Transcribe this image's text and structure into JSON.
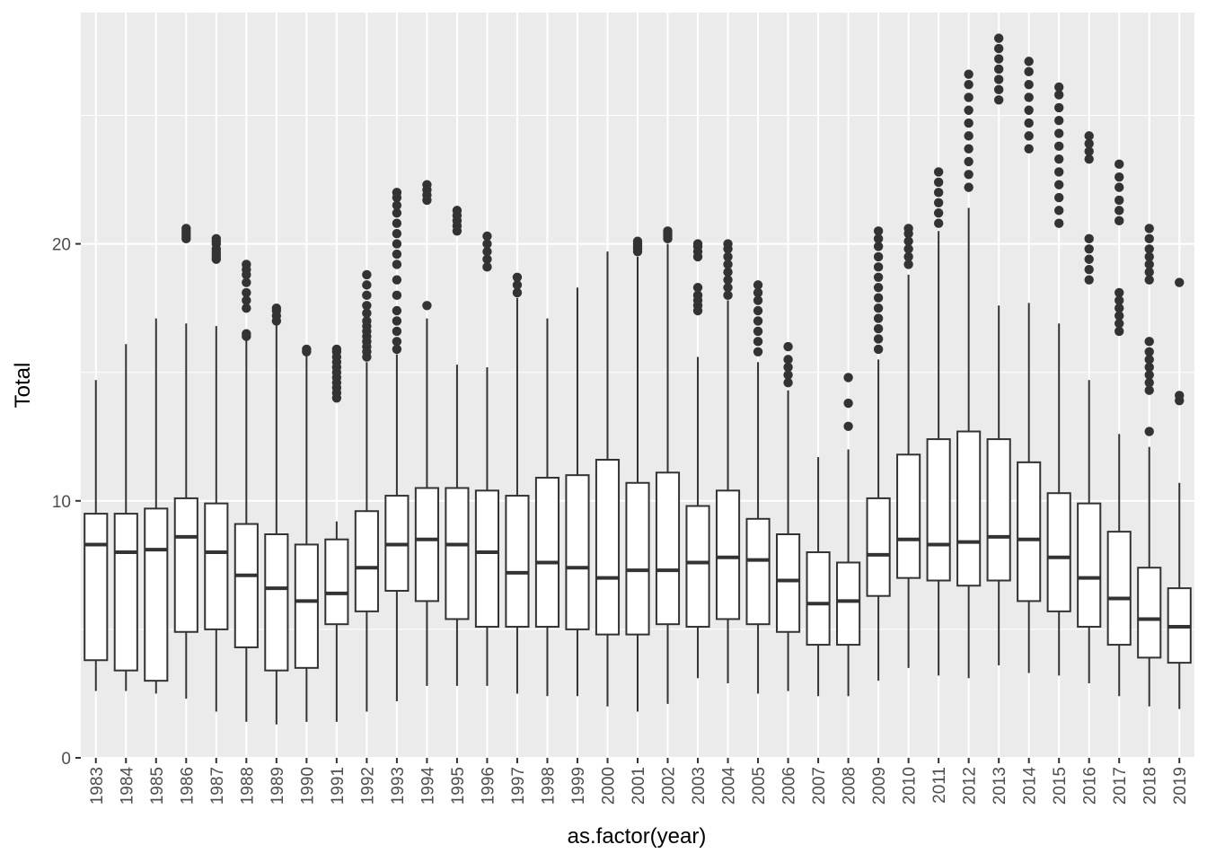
{
  "chart_data": {
    "type": "boxplot",
    "xlabel": "as.factor(year)",
    "ylabel": "Total",
    "ylim": [
      0,
      29
    ],
    "y_ticks": [
      0,
      10,
      20
    ],
    "grid": true,
    "legend": "none",
    "colors": {
      "panel_background": "#ebebeb",
      "gridline": "#ffffff",
      "box_fill": "#ffffff",
      "box_stroke": "#333333",
      "outlier": "#333333",
      "tick_text": "#4d4d4d"
    },
    "categories": [
      "1983",
      "1984",
      "1985",
      "1986",
      "1987",
      "1988",
      "1989",
      "1990",
      "1991",
      "1992",
      "1993",
      "1994",
      "1995",
      "1996",
      "1997",
      "1998",
      "1999",
      "2000",
      "2001",
      "2002",
      "2003",
      "2004",
      "2005",
      "2006",
      "2007",
      "2008",
      "2009",
      "2010",
      "2011",
      "2012",
      "2013",
      "2014",
      "2015",
      "2016",
      "2017",
      "2018",
      "2019"
    ],
    "boxes": [
      {
        "year": "1983",
        "min": 2.6,
        "q1": 3.8,
        "median": 8.3,
        "q3": 9.5,
        "max": 14.7,
        "outliers": []
      },
      {
        "year": "1984",
        "min": 2.6,
        "q1": 3.4,
        "median": 8.0,
        "q3": 9.5,
        "max": 16.1,
        "outliers": []
      },
      {
        "year": "1985",
        "min": 2.5,
        "q1": 3.0,
        "median": 8.1,
        "q3": 9.7,
        "max": 17.1,
        "outliers": []
      },
      {
        "year": "1986",
        "min": 2.3,
        "q1": 4.9,
        "median": 8.6,
        "q3": 10.1,
        "max": 16.9,
        "outliers": [
          20.2,
          20.3,
          20.4,
          20.5,
          20.6
        ]
      },
      {
        "year": "1987",
        "min": 1.8,
        "q1": 5.0,
        "median": 8.0,
        "q3": 9.9,
        "max": 16.8,
        "outliers": [
          19.4,
          19.5,
          19.6,
          19.7,
          19.8,
          20.0,
          20.1,
          20.2
        ]
      },
      {
        "year": "1988",
        "min": 1.4,
        "q1": 4.3,
        "median": 7.1,
        "q3": 9.1,
        "max": 16.3,
        "outliers": [
          16.4,
          16.5,
          17.5,
          17.8,
          18.1,
          18.5,
          18.8,
          19.0,
          19.2
        ]
      },
      {
        "year": "1989",
        "min": 1.3,
        "q1": 3.4,
        "median": 6.6,
        "q3": 8.7,
        "max": 16.9,
        "outliers": [
          17.0,
          17.2,
          17.4,
          17.5
        ]
      },
      {
        "year": "1990",
        "min": 1.4,
        "q1": 3.5,
        "median": 6.1,
        "q3": 8.3,
        "max": 15.7,
        "outliers": [
          15.8,
          15.9
        ]
      },
      {
        "year": "1991",
        "min": 1.4,
        "q1": 5.2,
        "median": 6.4,
        "q3": 8.5,
        "max": 9.2,
        "outliers": [
          14.0,
          14.2,
          14.4,
          14.6,
          14.8,
          15.0,
          15.2,
          15.4,
          15.6,
          15.8,
          15.9
        ]
      },
      {
        "year": "1992",
        "min": 1.8,
        "q1": 5.7,
        "median": 7.4,
        "q3": 9.6,
        "max": 15.4,
        "outliers": [
          15.6,
          15.8,
          16.0,
          16.2,
          16.4,
          16.6,
          16.8,
          17.0,
          17.3,
          17.6,
          18.0,
          18.4,
          18.8
        ]
      },
      {
        "year": "1993",
        "min": 2.2,
        "q1": 6.5,
        "median": 8.3,
        "q3": 10.2,
        "max": 15.7,
        "outliers": [
          15.9,
          16.2,
          16.6,
          17.0,
          17.4,
          18.0,
          18.6,
          19.2,
          19.6,
          20.0,
          20.4,
          20.8,
          21.2,
          21.5,
          21.8,
          22.0
        ]
      },
      {
        "year": "1994",
        "min": 2.8,
        "q1": 6.1,
        "median": 8.5,
        "q3": 10.5,
        "max": 17.1,
        "outliers": [
          17.6,
          21.7,
          21.9,
          22.1,
          22.3
        ]
      },
      {
        "year": "1995",
        "min": 2.8,
        "q1": 5.4,
        "median": 8.3,
        "q3": 10.5,
        "max": 15.3,
        "outliers": [
          20.5,
          20.7,
          20.9,
          21.1,
          21.3
        ]
      },
      {
        "year": "1996",
        "min": 2.8,
        "q1": 5.1,
        "median": 8.0,
        "q3": 10.4,
        "max": 15.2,
        "outliers": [
          19.1,
          19.4,
          19.7,
          20.0,
          20.3
        ]
      },
      {
        "year": "1997",
        "min": 2.5,
        "q1": 5.1,
        "median": 7.2,
        "q3": 10.2,
        "max": 17.9,
        "outliers": [
          18.1,
          18.4,
          18.7
        ]
      },
      {
        "year": "1998",
        "min": 2.4,
        "q1": 5.1,
        "median": 7.6,
        "q3": 10.9,
        "max": 17.1,
        "outliers": []
      },
      {
        "year": "1999",
        "min": 2.4,
        "q1": 5.0,
        "median": 7.4,
        "q3": 11.0,
        "max": 18.3,
        "outliers": []
      },
      {
        "year": "2000",
        "min": 2.0,
        "q1": 4.8,
        "median": 7.0,
        "q3": 11.6,
        "max": 19.7,
        "outliers": []
      },
      {
        "year": "2001",
        "min": 1.8,
        "q1": 4.8,
        "median": 7.3,
        "q3": 10.7,
        "max": 19.5,
        "outliers": [
          19.7,
          19.8,
          19.9,
          20.0,
          20.1
        ]
      },
      {
        "year": "2002",
        "min": 2.1,
        "q1": 5.2,
        "median": 7.3,
        "q3": 11.1,
        "max": 20.0,
        "outliers": [
          20.2,
          20.3,
          20.4,
          20.5
        ]
      },
      {
        "year": "2003",
        "min": 3.1,
        "q1": 5.1,
        "median": 7.6,
        "q3": 9.8,
        "max": 15.6,
        "outliers": [
          17.4,
          17.6,
          17.8,
          18.0,
          18.3,
          19.5,
          19.7,
          19.9,
          20.0
        ]
      },
      {
        "year": "2004",
        "min": 2.9,
        "q1": 5.4,
        "median": 7.8,
        "q3": 10.4,
        "max": 17.8,
        "outliers": [
          18.0,
          18.3,
          18.6,
          18.9,
          19.2,
          19.5,
          19.8,
          20.0
        ]
      },
      {
        "year": "2005",
        "min": 2.5,
        "q1": 5.2,
        "median": 7.7,
        "q3": 9.3,
        "max": 15.4,
        "outliers": [
          15.8,
          16.2,
          16.6,
          17.0,
          17.4,
          17.8,
          18.1,
          18.4
        ]
      },
      {
        "year": "2006",
        "min": 2.6,
        "q1": 4.9,
        "median": 6.9,
        "q3": 8.7,
        "max": 14.3,
        "outliers": [
          14.6,
          14.9,
          15.2,
          15.5,
          16.0
        ]
      },
      {
        "year": "2007",
        "min": 2.4,
        "q1": 4.4,
        "median": 6.0,
        "q3": 8.0,
        "max": 11.7,
        "outliers": []
      },
      {
        "year": "2008",
        "min": 2.4,
        "q1": 4.4,
        "median": 6.1,
        "q3": 7.6,
        "max": 12.0,
        "outliers": [
          12.9,
          13.8,
          14.8
        ]
      },
      {
        "year": "2009",
        "min": 3.0,
        "q1": 6.3,
        "median": 7.9,
        "q3": 10.1,
        "max": 15.5,
        "outliers": [
          15.9,
          16.3,
          16.7,
          17.1,
          17.5,
          17.9,
          18.3,
          18.7,
          19.1,
          19.5,
          19.9,
          20.2,
          20.5
        ]
      },
      {
        "year": "2010",
        "min": 3.5,
        "q1": 7.0,
        "median": 8.5,
        "q3": 11.8,
        "max": 18.8,
        "outliers": [
          19.2,
          19.5,
          19.8,
          20.1,
          20.4,
          20.6
        ]
      },
      {
        "year": "2011",
        "min": 3.2,
        "q1": 6.9,
        "median": 8.3,
        "q3": 12.4,
        "max": 20.5,
        "outliers": [
          20.8,
          21.2,
          21.6,
          22.0,
          22.4,
          22.8
        ]
      },
      {
        "year": "2012",
        "min": 3.1,
        "q1": 6.7,
        "median": 8.4,
        "q3": 12.7,
        "max": 21.4,
        "outliers": [
          22.2,
          22.7,
          23.2,
          23.7,
          24.2,
          24.7,
          25.2,
          25.7,
          26.2,
          26.6
        ]
      },
      {
        "year": "2013",
        "min": 3.6,
        "q1": 6.9,
        "median": 8.6,
        "q3": 12.4,
        "max": 17.6,
        "outliers": [
          25.6,
          26.0,
          26.4,
          26.8,
          27.2,
          27.6,
          28.0
        ]
      },
      {
        "year": "2014",
        "min": 3.3,
        "q1": 6.1,
        "median": 8.5,
        "q3": 11.5,
        "max": 17.7,
        "outliers": [
          23.7,
          24.2,
          24.7,
          25.2,
          25.7,
          26.2,
          26.7,
          27.1
        ]
      },
      {
        "year": "2015",
        "min": 3.2,
        "q1": 5.7,
        "median": 7.8,
        "q3": 10.3,
        "max": 16.9,
        "outliers": [
          20.8,
          21.3,
          21.8,
          22.3,
          22.8,
          23.3,
          23.8,
          24.3,
          24.8,
          25.3,
          25.8,
          26.1
        ]
      },
      {
        "year": "2016",
        "min": 2.9,
        "q1": 5.1,
        "median": 7.0,
        "q3": 9.9,
        "max": 14.7,
        "outliers": [
          18.6,
          19.0,
          19.4,
          19.8,
          20.2,
          23.3,
          23.6,
          23.9,
          24.2
        ]
      },
      {
        "year": "2017",
        "min": 2.4,
        "q1": 4.4,
        "median": 6.2,
        "q3": 8.8,
        "max": 12.6,
        "outliers": [
          16.6,
          16.9,
          17.2,
          17.5,
          17.8,
          18.1,
          20.9,
          21.3,
          21.7,
          22.2,
          22.6,
          23.1
        ]
      },
      {
        "year": "2018",
        "min": 2.0,
        "q1": 3.9,
        "median": 5.4,
        "q3": 7.4,
        "max": 12.1,
        "outliers": [
          12.7,
          14.3,
          14.6,
          14.9,
          15.2,
          15.5,
          15.8,
          16.2,
          18.6,
          18.9,
          19.2,
          19.5,
          19.8,
          20.2,
          20.6
        ]
      },
      {
        "year": "2019",
        "min": 1.9,
        "q1": 3.7,
        "median": 5.1,
        "q3": 6.6,
        "max": 10.7,
        "outliers": [
          13.9,
          14.1,
          18.5
        ]
      }
    ]
  }
}
